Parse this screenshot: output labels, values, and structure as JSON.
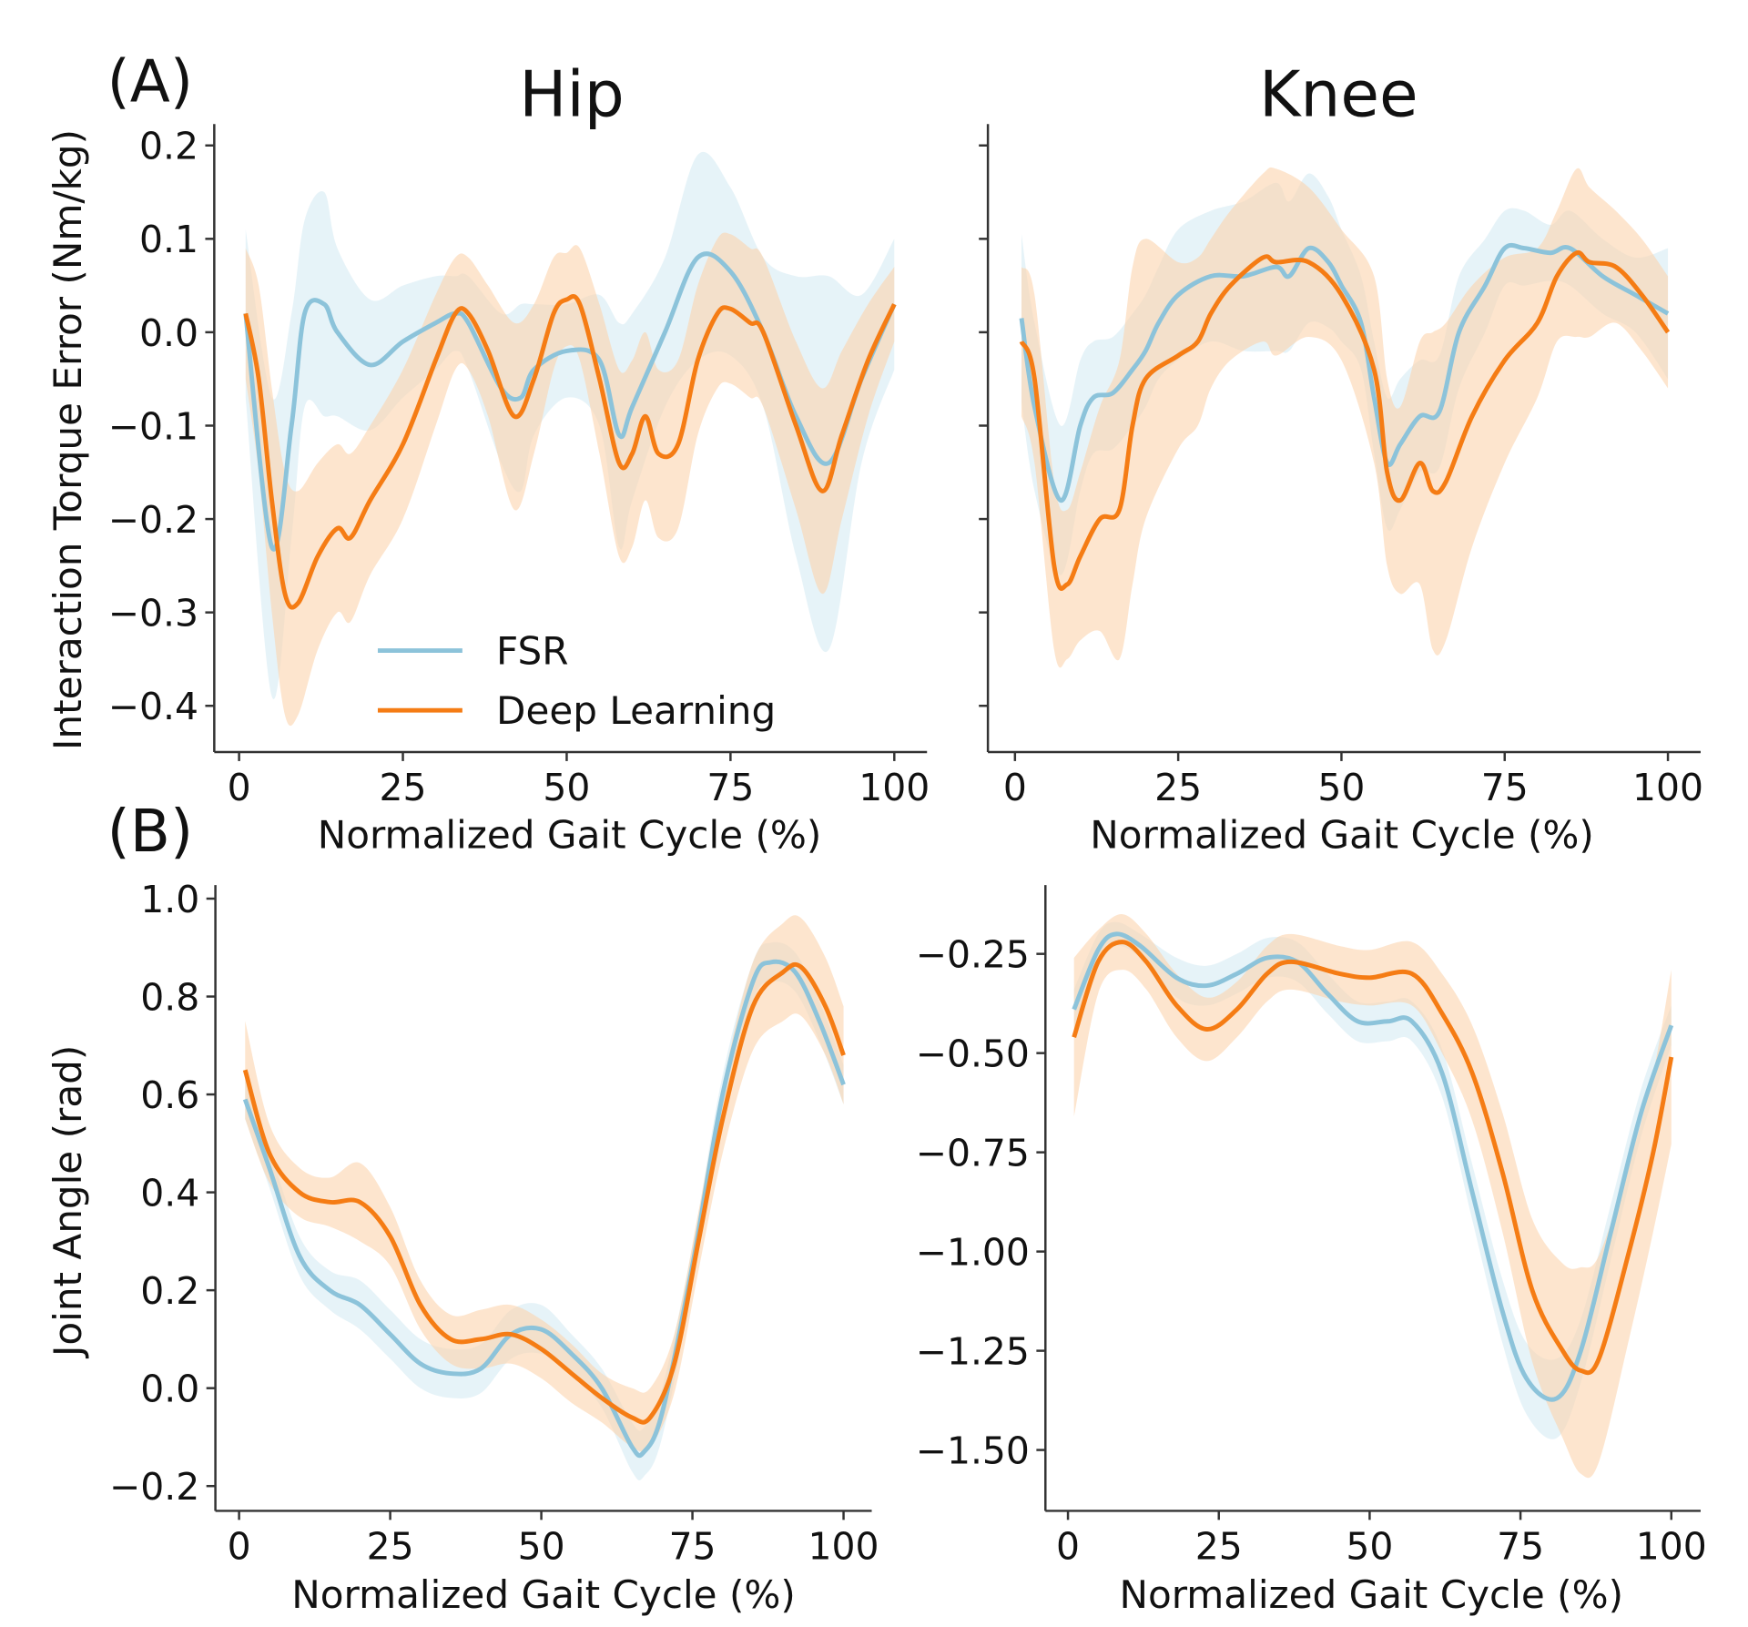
{
  "panel_labels": [
    "(A)",
    "(B)"
  ],
  "legend": {
    "placement": "lower-left of Hip torque panel",
    "entries": [
      "FSR",
      "Deep Learning"
    ]
  },
  "colors": {
    "FSR": "#8cc3da",
    "FSR_band": "#d6ebf3",
    "Deep Learning": "#f57c14",
    "Deep Learning_band": "#fbd3ad",
    "axis": "#333333"
  },
  "chart_data": [
    {
      "id": "A-hip",
      "type": "line",
      "title": "Hip",
      "xlabel": "Normalized Gait Cycle (%)",
      "ylabel": "Interaction Torque Error (Nm/kg)",
      "xlim": [
        -4,
        104
      ],
      "ylim": [
        -0.45,
        0.22
      ],
      "xticks": [
        0,
        25,
        50,
        75,
        100
      ],
      "xtick_labels": [
        "0",
        "25",
        "50",
        "75",
        "100"
      ],
      "yticks": [
        0.2,
        0.1,
        0.0,
        -0.1,
        -0.2,
        -0.3,
        -0.4
      ],
      "ytick_labels": [
        "0.2",
        "0.1",
        "0.0",
        "−0.1",
        "−0.2",
        "−0.3",
        "−0.4"
      ],
      "grid": false,
      "shaded": "mean ± spread",
      "series": [
        {
          "name": "FSR",
          "x": [
            1,
            5,
            8,
            10,
            13,
            15,
            20,
            25,
            30,
            33,
            35,
            40,
            43,
            45,
            50,
            55,
            58,
            60,
            65,
            70,
            75,
            80,
            85,
            90,
            95,
            100
          ],
          "y": [
            0.02,
            -0.23,
            -0.1,
            0.02,
            0.03,
            0.0,
            -0.035,
            -0.01,
            0.01,
            0.02,
            0.01,
            -0.06,
            -0.07,
            -0.04,
            -0.02,
            -0.03,
            -0.11,
            -0.08,
            0.0,
            0.08,
            0.065,
            0.0,
            -0.09,
            -0.14,
            -0.05,
            0.03
          ],
          "spread": [
            0.09,
            0.16,
            0.12,
            0.1,
            0.12,
            0.09,
            0.07,
            0.06,
            0.05,
            0.04,
            0.05,
            0.08,
            0.1,
            0.07,
            0.05,
            0.07,
            0.12,
            0.1,
            0.08,
            0.11,
            0.09,
            0.08,
            0.15,
            0.2,
            0.09,
            0.07
          ]
        },
        {
          "name": "Deep Learning",
          "x": [
            1,
            3,
            5,
            7,
            9,
            12,
            15,
            17,
            20,
            25,
            30,
            33,
            35,
            38,
            42,
            45,
            48,
            50,
            52,
            55,
            58,
            60,
            62,
            64,
            67,
            70,
            73,
            75,
            78,
            80,
            85,
            89,
            92,
            96,
            100
          ],
          "y": [
            0.02,
            -0.05,
            -0.18,
            -0.28,
            -0.29,
            -0.24,
            -0.21,
            -0.22,
            -0.18,
            -0.12,
            -0.03,
            0.02,
            0.02,
            -0.02,
            -0.09,
            -0.05,
            0.02,
            0.035,
            0.03,
            -0.05,
            -0.14,
            -0.13,
            -0.09,
            -0.13,
            -0.12,
            -0.03,
            0.02,
            0.025,
            0.01,
            0.0,
            -0.1,
            -0.17,
            -0.11,
            -0.03,
            0.03
          ],
          "spread": [
            0.07,
            0.1,
            0.12,
            0.13,
            0.12,
            0.1,
            0.09,
            0.09,
            0.08,
            0.08,
            0.07,
            0.06,
            0.06,
            0.07,
            0.1,
            0.08,
            0.06,
            0.05,
            0.06,
            0.08,
            0.1,
            0.1,
            0.09,
            0.09,
            0.09,
            0.08,
            0.08,
            0.08,
            0.08,
            0.08,
            0.09,
            0.11,
            0.09,
            0.06,
            0.04
          ]
        }
      ]
    },
    {
      "id": "A-knee",
      "type": "line",
      "title": "Knee",
      "xlabel": "Normalized Gait Cycle (%)",
      "ylabel": "",
      "xlim": [
        -4,
        104
      ],
      "ylim": [
        -0.45,
        0.22
      ],
      "xticks": [
        0,
        25,
        50,
        75,
        100
      ],
      "xtick_labels": [
        "0",
        "25",
        "50",
        "75",
        "100"
      ],
      "yticks": [
        0.2,
        0.1,
        0.0,
        -0.1,
        -0.2,
        -0.3,
        -0.4
      ],
      "ytick_labels": [],
      "grid": false,
      "shaded": "mean ± spread",
      "series": [
        {
          "name": "FSR",
          "x": [
            1,
            3,
            7,
            10,
            12,
            15,
            18,
            20,
            22,
            25,
            30,
            35,
            40,
            42,
            45,
            48,
            50,
            53,
            55,
            57,
            59,
            62,
            65,
            68,
            72,
            75,
            78,
            82,
            85,
            90,
            95,
            100
          ],
          "y": [
            0.015,
            -0.08,
            -0.18,
            -0.1,
            -0.07,
            -0.065,
            -0.04,
            -0.02,
            0.01,
            0.04,
            0.06,
            0.06,
            0.07,
            0.06,
            0.09,
            0.075,
            0.05,
            0.01,
            -0.07,
            -0.14,
            -0.12,
            -0.09,
            -0.085,
            0.0,
            0.05,
            0.09,
            0.09,
            0.085,
            0.09,
            0.06,
            0.04,
            0.02
          ],
          "spread": [
            0.09,
            0.09,
            0.08,
            0.07,
            0.06,
            0.06,
            0.06,
            0.06,
            0.06,
            0.07,
            0.07,
            0.08,
            0.09,
            0.08,
            0.08,
            0.07,
            0.06,
            0.05,
            0.06,
            0.07,
            0.07,
            0.06,
            0.06,
            0.06,
            0.05,
            0.04,
            0.04,
            0.03,
            0.04,
            0.04,
            0.04,
            0.07
          ]
        },
        {
          "name": "Deep Learning",
          "x": [
            1,
            3,
            6,
            8,
            10,
            13,
            16,
            18,
            20,
            25,
            28,
            30,
            33,
            38,
            40,
            45,
            50,
            55,
            57,
            59,
            62,
            64,
            66,
            70,
            75,
            80,
            83,
            86,
            88,
            92,
            96,
            100
          ],
          "y": [
            -0.01,
            -0.05,
            -0.25,
            -0.27,
            -0.24,
            -0.2,
            -0.19,
            -0.1,
            -0.05,
            -0.025,
            -0.01,
            0.02,
            0.05,
            0.08,
            0.075,
            0.075,
            0.04,
            -0.04,
            -0.15,
            -0.18,
            -0.14,
            -0.17,
            -0.16,
            -0.09,
            -0.03,
            0.01,
            0.06,
            0.085,
            0.075,
            0.07,
            0.04,
            0.0
          ],
          "spread": [
            0.08,
            0.09,
            0.09,
            0.08,
            0.09,
            0.12,
            0.16,
            0.17,
            0.15,
            0.1,
            0.09,
            0.08,
            0.08,
            0.09,
            0.1,
            0.08,
            0.07,
            0.1,
            0.1,
            0.1,
            0.13,
            0.17,
            0.17,
            0.14,
            0.11,
            0.08,
            0.07,
            0.09,
            0.08,
            0.06,
            0.06,
            0.06
          ]
        }
      ]
    },
    {
      "id": "B-hip",
      "type": "line",
      "title": "",
      "xlabel": "Normalized Gait Cycle (%)",
      "ylabel": "Joint Angle (rad)",
      "xlim": [
        -4,
        105
      ],
      "ylim": [
        -0.25,
        1.03
      ],
      "xticks": [
        0,
        25,
        50,
        75,
        100
      ],
      "xtick_labels": [
        "0",
        "25",
        "50",
        "75",
        "100"
      ],
      "yticks": [
        1.0,
        0.8,
        0.6,
        0.4,
        0.2,
        0.0,
        -0.2
      ],
      "ytick_labels": [
        "1.0",
        "0.8",
        "0.6",
        "0.4",
        "0.2",
        "0.0",
        "−0.2"
      ],
      "grid": false,
      "shaded": "mean ± spread",
      "series": [
        {
          "name": "FSR",
          "x": [
            1,
            5,
            10,
            15,
            20,
            25,
            30,
            35,
            40,
            45,
            50,
            55,
            60,
            65,
            67,
            70,
            75,
            80,
            85,
            88,
            92,
            96,
            100
          ],
          "y": [
            0.59,
            0.45,
            0.27,
            0.2,
            0.17,
            0.11,
            0.05,
            0.03,
            0.04,
            0.11,
            0.12,
            0.07,
            0.0,
            -0.12,
            -0.13,
            -0.05,
            0.25,
            0.6,
            0.83,
            0.87,
            0.85,
            0.75,
            0.62
          ],
          "spread": [
            0.04,
            0.04,
            0.04,
            0.04,
            0.05,
            0.05,
            0.05,
            0.05,
            0.05,
            0.05,
            0.05,
            0.04,
            0.04,
            0.05,
            0.05,
            0.05,
            0.04,
            0.04,
            0.04,
            0.04,
            0.04,
            0.04,
            0.04
          ]
        },
        {
          "name": "Deep Learning",
          "x": [
            1,
            5,
            10,
            15,
            20,
            25,
            30,
            35,
            40,
            45,
            50,
            55,
            60,
            65,
            68,
            72,
            76,
            80,
            85,
            90,
            93,
            97,
            100
          ],
          "y": [
            0.65,
            0.48,
            0.4,
            0.38,
            0.38,
            0.31,
            0.17,
            0.1,
            0.1,
            0.11,
            0.08,
            0.03,
            -0.02,
            -0.06,
            -0.06,
            0.05,
            0.3,
            0.55,
            0.78,
            0.85,
            0.86,
            0.78,
            0.68
          ],
          "spread": [
            0.1,
            0.06,
            0.05,
            0.05,
            0.08,
            0.06,
            0.05,
            0.05,
            0.06,
            0.06,
            0.06,
            0.06,
            0.05,
            0.06,
            0.06,
            0.06,
            0.06,
            0.07,
            0.09,
            0.1,
            0.1,
            0.1,
            0.1
          ]
        }
      ]
    },
    {
      "id": "B-knee",
      "type": "line",
      "title": "",
      "xlabel": "Normalized Gait Cycle (%)",
      "ylabel": "",
      "xlim": [
        -3,
        105
      ],
      "ylim": [
        -1.63,
        -0.12
      ],
      "xticks": [
        0,
        25,
        50,
        75,
        100
      ],
      "xtick_labels": [
        "0",
        "25",
        "50",
        "75",
        "100"
      ],
      "yticks": [
        -0.25,
        -0.5,
        -0.75,
        -1.0,
        -1.25,
        -1.5
      ],
      "ytick_labels": [
        "−0.25",
        "−0.50",
        "−0.75",
        "−1.00",
        "−1.25",
        "−1.50"
      ],
      "grid": false,
      "shaded": "mean ± spread",
      "series": [
        {
          "name": "FSR",
          "x": [
            1,
            5,
            8,
            12,
            18,
            23,
            28,
            33,
            38,
            43,
            48,
            53,
            57,
            62,
            67,
            72,
            76,
            81,
            85,
            90,
            95,
            100
          ],
          "y": [
            -0.39,
            -0.24,
            -0.2,
            -0.23,
            -0.31,
            -0.33,
            -0.3,
            -0.26,
            -0.27,
            -0.35,
            -0.42,
            -0.42,
            -0.42,
            -0.55,
            -0.85,
            -1.15,
            -1.32,
            -1.37,
            -1.25,
            -0.95,
            -0.65,
            -0.43
          ],
          "spread": [
            0.05,
            0.04,
            0.03,
            0.03,
            0.05,
            0.05,
            0.05,
            0.05,
            0.05,
            0.05,
            0.05,
            0.05,
            0.05,
            0.06,
            0.07,
            0.08,
            0.09,
            0.1,
            0.08,
            0.07,
            0.06,
            0.05
          ]
        },
        {
          "name": "Deep Learning",
          "x": [
            1,
            5,
            9,
            13,
            18,
            23,
            28,
            33,
            37,
            45,
            50,
            57,
            62,
            67,
            72,
            77,
            82,
            85,
            88,
            93,
            97,
            100
          ],
          "y": [
            -0.46,
            -0.27,
            -0.22,
            -0.27,
            -0.38,
            -0.44,
            -0.39,
            -0.3,
            -0.27,
            -0.3,
            -0.31,
            -0.3,
            -0.4,
            -0.55,
            -0.8,
            -1.1,
            -1.25,
            -1.3,
            -1.27,
            -1.0,
            -0.75,
            -0.51
          ],
          "spread": [
            0.2,
            0.08,
            0.07,
            0.07,
            0.08,
            0.08,
            0.07,
            0.07,
            0.07,
            0.07,
            0.07,
            0.08,
            0.1,
            0.12,
            0.15,
            0.18,
            0.22,
            0.26,
            0.26,
            0.22,
            0.2,
            0.22
          ]
        }
      ]
    }
  ]
}
